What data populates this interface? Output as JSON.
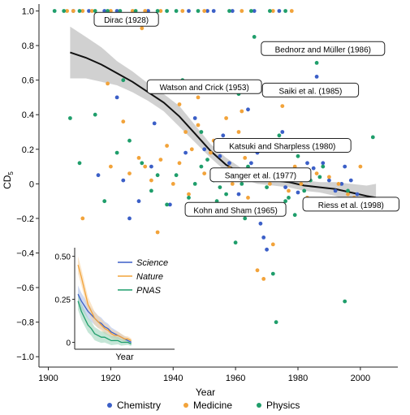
{
  "chart_data": {
    "type": "scatter",
    "xlabel": "Year",
    "ylabel_main": "CD",
    "ylabel_sub": "5",
    "xlim": [
      1897,
      2012
    ],
    "ylim": [
      -1.06,
      1.04
    ],
    "x_ticks": [
      1900,
      1920,
      1940,
      1960,
      1980,
      2000
    ],
    "x_tick_labels": [
      "1900",
      "1920",
      "1940",
      "1960",
      "1980",
      "2000"
    ],
    "y_ticks": [
      1.0,
      0.8,
      0.6,
      0.4,
      0.2,
      0,
      -0.2,
      -0.4,
      -0.6,
      -0.8,
      -1.0
    ],
    "y_tick_labels": [
      "1.0",
      "0.8",
      "0.6",
      "0.4",
      "0.2",
      "0",
      "−0.2",
      "−0.4",
      "−0.6",
      "−0.8",
      "−1.0"
    ],
    "legend": {
      "placement": "bottom",
      "entries": [
        {
          "name": "Chemistry",
          "color": "#3b5fc7"
        },
        {
          "name": "Medicine",
          "color": "#f2a33a"
        },
        {
          "name": "Physics",
          "color": "#1f9e6b"
        }
      ]
    },
    "trend": {
      "x": [
        1907,
        1912,
        1917,
        1922,
        1927,
        1932,
        1937,
        1942,
        1947,
        1952,
        1957,
        1962,
        1967,
        1972,
        1977,
        1982,
        1987,
        1992,
        1997,
        2002,
        2005
      ],
      "y": [
        0.76,
        0.73,
        0.69,
        0.64,
        0.59,
        0.53,
        0.47,
        0.39,
        0.29,
        0.19,
        0.11,
        0.06,
        0.03,
        0.02,
        0.01,
        -0.01,
        -0.02,
        -0.03,
        -0.05,
        -0.07,
        -0.08
      ],
      "band_half_width": [
        0.15,
        0.12,
        0.1,
        0.07,
        0.06,
        0.05,
        0.05,
        0.06,
        0.05,
        0.04,
        0.04,
        0.03,
        0.03,
        0.03,
        0.03,
        0.03,
        0.03,
        0.04,
        0.05,
        0.06,
        0.08
      ],
      "line_color": "#111111",
      "band_color": "#c9c9c9"
    },
    "annotations": [
      {
        "text": "Dirac (1928)",
        "x": 1925,
        "y": 0.95
      },
      {
        "text": "Bednorz and Müller (1986)",
        "x": 1988,
        "y": 0.78
      },
      {
        "text": "Watson and Crick (1953)",
        "x": 1950,
        "y": 0.56
      },
      {
        "text": "Saiki et al. (1985)",
        "x": 1984,
        "y": 0.54
      },
      {
        "text": "Katsuki and Sharpless (1980)",
        "x": 1975,
        "y": 0.22
      },
      {
        "text": "Sanger et al. (1977)",
        "x": 1968,
        "y": 0.05
      },
      {
        "text": "Kohn and Sham (1965)",
        "x": 1960,
        "y": -0.15
      },
      {
        "text": "Riess et al. (1998)",
        "x": 1997,
        "y": -0.12
      }
    ],
    "points": {
      "Chemistry": [
        [
          1908,
          1
        ],
        [
          1913,
          1
        ],
        [
          1918,
          1
        ],
        [
          1922,
          1
        ],
        [
          1932,
          1
        ],
        [
          1945,
          1
        ],
        [
          1951,
          1
        ],
        [
          1953,
          1
        ],
        [
          1959,
          1
        ],
        [
          1966,
          1
        ],
        [
          1974,
          1
        ],
        [
          1922,
          0.5
        ],
        [
          1916,
          0.05
        ],
        [
          1924,
          0.02
        ],
        [
          1929,
          -0.1
        ],
        [
          1933,
          0.1
        ],
        [
          1934,
          0.35
        ],
        [
          1944,
          0.18
        ],
        [
          1947,
          0.38
        ],
        [
          1955,
          0.16
        ],
        [
          1956,
          0.28
        ],
        [
          1958,
          0.12
        ],
        [
          1963,
          0.03
        ],
        [
          1965,
          0.12
        ],
        [
          1968,
          -0.23
        ],
        [
          1969,
          -0.31
        ],
        [
          1970,
          -0.38
        ],
        [
          1971,
          -0.12
        ],
        [
          1973,
          0.03
        ],
        [
          1975,
          0.3
        ],
        [
          1977,
          0.08
        ],
        [
          1978,
          0.02
        ],
        [
          1980,
          -0.05
        ],
        [
          1982,
          0.04
        ],
        [
          1986,
          0.62
        ],
        [
          1988,
          0.12
        ],
        [
          1990,
          0.02
        ],
        [
          1992,
          -0.04
        ],
        [
          1994,
          0.0
        ],
        [
          1997,
          0.02
        ],
        [
          1999,
          -0.06
        ],
        [
          2003,
          -0.09
        ],
        [
          1972,
          0.52
        ],
        [
          1985,
          0.09
        ],
        [
          1964,
          0.43
        ],
        [
          1967,
          0.18
        ],
        [
          1939,
          -0.12
        ],
        [
          1950,
          0.2
        ],
        [
          1961,
          -0.06
        ],
        [
          1976,
          -0.02
        ],
        [
          1983,
          0.12
        ],
        [
          1995,
          0.1
        ],
        [
          1957,
          -0.16
        ],
        [
          1926,
          -0.2
        ]
      ],
      "Medicine": [
        [
          1906,
          1
        ],
        [
          1908,
          1
        ],
        [
          1911,
          1
        ],
        [
          1914,
          1
        ],
        [
          1920,
          1
        ],
        [
          1927,
          1
        ],
        [
          1931,
          1
        ],
        [
          1936,
          1
        ],
        [
          1943,
          1
        ],
        [
          1950,
          1
        ],
        [
          1962,
          1
        ],
        [
          1972,
          1
        ],
        [
          1978,
          1
        ],
        [
          1930,
          0.9
        ],
        [
          1911,
          -0.2
        ],
        [
          1919,
          0.58
        ],
        [
          1924,
          0.36
        ],
        [
          1929,
          0.15
        ],
        [
          1931,
          0.1
        ],
        [
          1933,
          0.02
        ],
        [
          1936,
          0.14
        ],
        [
          1938,
          0.22
        ],
        [
          1940,
          0.0
        ],
        [
          1942,
          0.12
        ],
        [
          1944,
          0.3
        ],
        [
          1946,
          0.2
        ],
        [
          1948,
          0.34
        ],
        [
          1950,
          0.06
        ],
        [
          1952,
          0.18
        ],
        [
          1954,
          0.04
        ],
        [
          1956,
          0.24
        ],
        [
          1958,
          0.09
        ],
        [
          1959,
          0.0
        ],
        [
          1961,
          0.3
        ],
        [
          1963,
          0.15
        ],
        [
          1964,
          -0.08
        ],
        [
          1966,
          0.06
        ],
        [
          1967,
          -0.5
        ],
        [
          1969,
          -0.55
        ],
        [
          1971,
          0.0
        ],
        [
          1972,
          -0.35
        ],
        [
          1974,
          -0.16
        ],
        [
          1976,
          0.05
        ],
        [
          1977,
          -0.04
        ],
        [
          1979,
          0.1
        ],
        [
          1981,
          0.0
        ],
        [
          1983,
          -0.08
        ],
        [
          1985,
          0.2
        ],
        [
          1986,
          0.06
        ],
        [
          1989,
          -0.1
        ],
        [
          1990,
          0.04
        ],
        [
          1993,
          0.0
        ],
        [
          1996,
          -0.06
        ],
        [
          1998,
          -0.08
        ],
        [
          2000,
          0.1
        ],
        [
          1953,
          0.58
        ],
        [
          1942,
          0.46
        ],
        [
          1948,
          0.5
        ],
        [
          1957,
          0.38
        ],
        [
          1962,
          0.42
        ],
        [
          1935,
          -0.28
        ],
        [
          1926,
          0.06
        ],
        [
          1920,
          0.1
        ],
        [
          1945,
          -0.06
        ],
        [
          1953,
          0.25
        ],
        [
          1965,
          0.05
        ],
        [
          1961,
          -0.12
        ],
        [
          1975,
          0.45
        ]
      ],
      "Physics": [
        [
          1902,
          1
        ],
        [
          1905,
          1
        ],
        [
          1910,
          1
        ],
        [
          1915,
          1
        ],
        [
          1919,
          1
        ],
        [
          1923,
          1
        ],
        [
          1928,
          1
        ],
        [
          1935,
          1
        ],
        [
          1938,
          1
        ],
        [
          1941,
          1
        ],
        [
          1948,
          1
        ],
        [
          1958,
          1
        ],
        [
          1965,
          1
        ],
        [
          1971,
          1
        ],
        [
          1976,
          1
        ],
        [
          1924,
          0.6
        ],
        [
          1910,
          0.12
        ],
        [
          1915,
          0.4
        ],
        [
          1918,
          -0.1
        ],
        [
          1922,
          0.18
        ],
        [
          1926,
          0.25
        ],
        [
          1930,
          0.12
        ],
        [
          1933,
          -0.04
        ],
        [
          1938,
          -0.12
        ],
        [
          1941,
          0.05
        ],
        [
          1945,
          -0.08
        ],
        [
          1947,
          0.0
        ],
        [
          1949,
          0.1
        ],
        [
          1951,
          0.14
        ],
        [
          1953,
          0.02
        ],
        [
          1955,
          -0.02
        ],
        [
          1957,
          -0.06
        ],
        [
          1959,
          0.05
        ],
        [
          1960,
          -0.34
        ],
        [
          1962,
          0.0
        ],
        [
          1964,
          0.1
        ],
        [
          1966,
          0.2
        ],
        [
          1968,
          -0.15
        ],
        [
          1970,
          -0.02
        ],
        [
          1972,
          -0.52
        ],
        [
          1973,
          -0.8
        ],
        [
          1974,
          0.28
        ],
        [
          1975,
          0.05
        ],
        [
          1977,
          -0.08
        ],
        [
          1979,
          -0.18
        ],
        [
          1980,
          0.16
        ],
        [
          1982,
          -0.04
        ],
        [
          1984,
          0.02
        ],
        [
          1986,
          0.7
        ],
        [
          1987,
          0.04
        ],
        [
          1991,
          -0.1
        ],
        [
          1995,
          -0.68
        ],
        [
          1996,
          -0.04
        ],
        [
          2002,
          -0.12
        ],
        [
          2004,
          0.27
        ],
        [
          1943,
          0.6
        ],
        [
          1949,
          0.3
        ],
        [
          1961,
          0.52
        ],
        [
          1966,
          0.85
        ],
        [
          1907,
          0.38
        ],
        [
          1935,
          0.05
        ],
        [
          1954,
          -0.1
        ],
        [
          1963,
          -0.2
        ],
        [
          1976,
          -0.1
        ],
        [
          1988,
          0.1
        ]
      ]
    }
  },
  "inset": {
    "xlabel": "Year",
    "y_ticks": [
      0.5,
      0.25,
      0
    ],
    "y_tick_labels": [
      "0.50",
      "0.25",
      "0"
    ],
    "xlim": [
      1905,
      1965
    ],
    "ylim": [
      -0.04,
      0.55
    ],
    "legend": [
      {
        "name": "Science",
        "color": "#3b5fc7",
        "band": "#aebfeb"
      },
      {
        "name": "Nature",
        "color": "#f2a33a",
        "band": "#f8d3a3"
      },
      {
        "name": "PNAS",
        "color": "#1f9e6b",
        "band": "#9fd6bd"
      }
    ],
    "series": [
      {
        "name": "Science",
        "x": [
          1907,
          1909,
          1911,
          1913,
          1915,
          1917,
          1919,
          1921,
          1923,
          1925,
          1927,
          1929,
          1931,
          1933,
          1935,
          1937,
          1939
        ],
        "y": [
          0.28,
          0.24,
          0.21,
          0.18,
          0.16,
          0.14,
          0.12,
          0.11,
          0.09,
          0.08,
          0.06,
          0.05,
          0.04,
          0.03,
          0.02,
          0.01,
          0.0
        ]
      },
      {
        "name": "Nature",
        "x": [
          1907,
          1909,
          1911,
          1913,
          1915,
          1917,
          1919,
          1921,
          1923,
          1925,
          1927,
          1929,
          1931,
          1933,
          1935,
          1937,
          1939
        ],
        "y": [
          0.45,
          0.38,
          0.3,
          0.22,
          0.18,
          0.14,
          0.12,
          0.1,
          0.08,
          0.07,
          0.05,
          0.04,
          0.04,
          0.03,
          0.02,
          0.02,
          0.01
        ]
      },
      {
        "name": "PNAS",
        "x": [
          1907,
          1909,
          1911,
          1913,
          1915,
          1917,
          1919,
          1921,
          1923,
          1925,
          1927,
          1929,
          1931,
          1933,
          1935,
          1937,
          1939
        ],
        "y": [
          0.24,
          0.18,
          0.14,
          0.1,
          0.08,
          0.05,
          0.04,
          0.03,
          0.03,
          0.02,
          0.01,
          0.01,
          0.01,
          0.0,
          0.0,
          0.0,
          -0.01
        ]
      }
    ]
  }
}
